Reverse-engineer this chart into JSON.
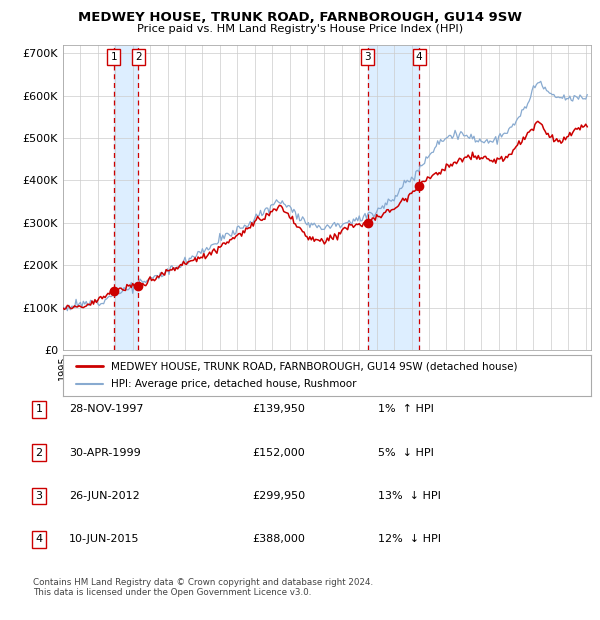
{
  "title": "MEDWEY HOUSE, TRUNK ROAD, FARNBOROUGH, GU14 9SW",
  "subtitle": "Price paid vs. HM Land Registry's House Price Index (HPI)",
  "ytick_labels": [
    "£0",
    "£100K",
    "£200K",
    "£300K",
    "£400K",
    "£500K",
    "£600K",
    "£700K"
  ],
  "ytick_vals": [
    0,
    100000,
    200000,
    300000,
    400000,
    500000,
    600000,
    700000
  ],
  "legend_line1": "MEDWEY HOUSE, TRUNK ROAD, FARNBOROUGH, GU14 9SW (detached house)",
  "legend_line2": "HPI: Average price, detached house, Rushmoor",
  "footer": "Contains HM Land Registry data © Crown copyright and database right 2024.\nThis data is licensed under the Open Government Licence v3.0.",
  "transactions": [
    {
      "num": 1,
      "date": "28-NOV-1997",
      "price": 139950,
      "pct": "1%",
      "dir": "↑"
    },
    {
      "num": 2,
      "date": "30-APR-1999",
      "price": 152000,
      "pct": "5%",
      "dir": "↓"
    },
    {
      "num": 3,
      "date": "26-JUN-2012",
      "price": 299950,
      "pct": "13%",
      "dir": "↓"
    },
    {
      "num": 4,
      "date": "10-JUN-2015",
      "price": 388000,
      "pct": "12%",
      "dir": "↓"
    }
  ],
  "transaction_dates_decimal": [
    1997.91,
    1999.33,
    2012.48,
    2015.44
  ],
  "marker_prices": [
    139950,
    152000,
    299950,
    388000
  ],
  "red_line_color": "#cc0000",
  "blue_line_color": "#88aad0",
  "vline_color": "#cc0000",
  "shade_color": "#ddeeff",
  "marker_color": "#cc0000",
  "grid_color": "#cccccc",
  "background_color": "#ffffff",
  "box_color": "#cc0000",
  "xlim": [
    1995,
    2025.3
  ],
  "ylim": [
    0,
    720000
  ],
  "xstart": 1995,
  "xend": 2025
}
